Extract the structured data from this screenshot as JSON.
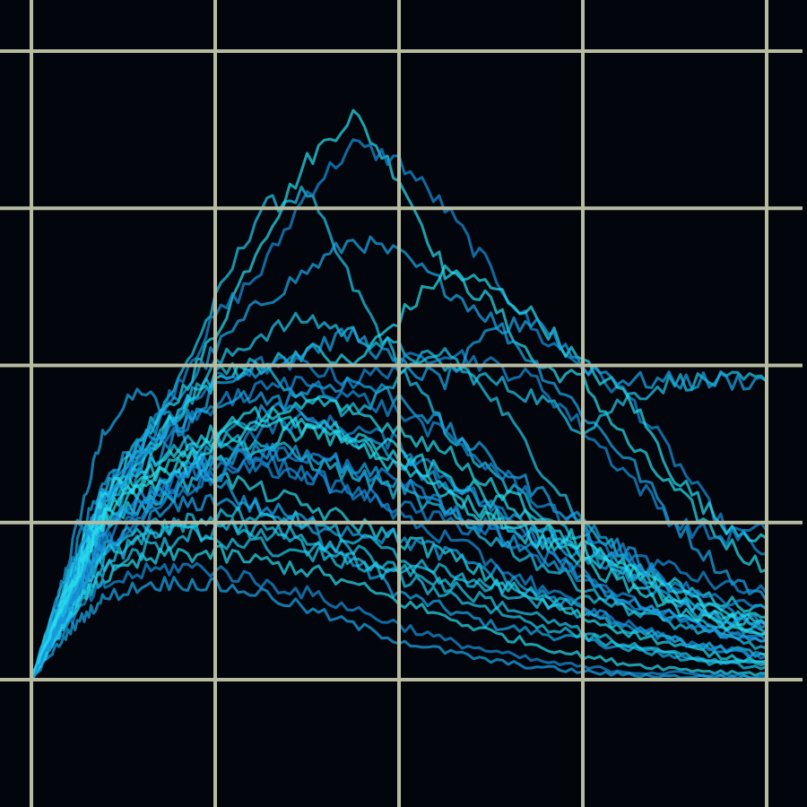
{
  "chart_data": {
    "type": "line",
    "title": "",
    "xlabel": "",
    "ylabel": "",
    "xlim": [
      0,
      4
    ],
    "ylim": [
      0,
      4
    ],
    "grid": true,
    "gridlines_x": [
      0,
      1,
      2,
      3,
      4
    ],
    "gridlines_y": [
      0,
      1,
      2,
      3,
      4
    ],
    "legend": "none",
    "background_color": "#03050d",
    "grid_color": "#b7bca0",
    "line_colors": [
      "#1aa8e6",
      "#20c8e8",
      "#27dcea",
      "#1690d8"
    ],
    "x": [
      0,
      0.1,
      0.2,
      0.3,
      0.4,
      0.6,
      0.8,
      1.0,
      1.25,
      1.5,
      1.75,
      2.0,
      2.25,
      2.5,
      2.75,
      3.0,
      3.25,
      3.5,
      3.75,
      4.0
    ],
    "series": [
      {
        "values": [
          0,
          0.35,
          0.75,
          1.2,
          1.6,
          1.85,
          1.6,
          1.25,
          1.1,
          0.95,
          0.75,
          0.55,
          0.45,
          0.35,
          0.3,
          0.25,
          0.2,
          0.15,
          0.12,
          0.1
        ]
      },
      {
        "values": [
          0,
          0.3,
          0.6,
          0.9,
          1.2,
          1.55,
          1.9,
          2.4,
          3.0,
          3.1,
          2.5,
          2.0,
          1.6,
          1.3,
          1.1,
          0.9,
          0.7,
          0.5,
          0.35,
          0.3
        ]
      },
      {
        "values": [
          0,
          0.3,
          0.6,
          0.9,
          1.2,
          1.5,
          1.8,
          2.2,
          2.8,
          3.3,
          3.6,
          3.2,
          2.6,
          2.4,
          2.0,
          1.9,
          1.5,
          1.2,
          0.9,
          0.7
        ]
      },
      {
        "values": [
          0,
          0.3,
          0.6,
          0.9,
          1.2,
          1.5,
          1.9,
          2.3,
          2.6,
          3.1,
          3.4,
          3.3,
          3.0,
          2.6,
          2.2,
          2.0,
          1.8,
          1.4,
          1.0,
          0.8
        ]
      },
      {
        "values": [
          0,
          0.3,
          0.6,
          0.9,
          1.2,
          1.5,
          1.8,
          2.1,
          2.4,
          2.6,
          2.8,
          2.7,
          2.5,
          2.3,
          2.0,
          1.7,
          1.4,
          1.0,
          0.7,
          0.5
        ]
      },
      {
        "values": [
          0,
          0.25,
          0.5,
          0.8,
          1.1,
          1.4,
          1.7,
          2.0,
          2.2,
          2.3,
          2.2,
          2.1,
          2.0,
          1.9,
          1.8,
          1.6,
          1.8,
          1.9,
          1.9,
          1.9
        ]
      },
      {
        "values": [
          0,
          0.25,
          0.5,
          0.8,
          1.1,
          1.4,
          1.7,
          1.9,
          2.0,
          2.1,
          2.0,
          2.3,
          2.6,
          2.5,
          2.3,
          2.0,
          1.8,
          1.3,
          1.0,
          0.9
        ]
      },
      {
        "values": [
          0,
          0.25,
          0.5,
          0.8,
          1.1,
          1.4,
          1.7,
          1.9,
          2.0,
          2.0,
          1.9,
          2.0,
          2.1,
          2.0,
          1.9,
          1.6,
          1.3,
          1.0,
          0.9,
          0.95
        ]
      },
      {
        "values": [
          0,
          0.2,
          0.45,
          0.7,
          1.0,
          1.3,
          1.6,
          1.85,
          2.0,
          2.1,
          2.2,
          2.0,
          1.9,
          2.2,
          2.3,
          2.0,
          1.9,
          1.9,
          1.9,
          1.9
        ]
      },
      {
        "values": [
          0,
          0.25,
          0.5,
          0.8,
          1.1,
          1.4,
          1.7,
          1.95,
          2.0,
          1.8,
          1.7,
          1.9,
          2.1,
          1.8,
          1.4,
          1.0,
          0.75,
          0.55,
          0.4,
          0.35
        ]
      },
      {
        "values": [
          0,
          0.3,
          0.6,
          0.85,
          1.05,
          1.1,
          1.2,
          1.4,
          1.5,
          1.6,
          1.5,
          1.4,
          1.2,
          1.0,
          0.9,
          0.8,
          0.7,
          0.6,
          0.5,
          0.45
        ]
      },
      {
        "values": [
          0,
          0.3,
          0.55,
          0.8,
          1.0,
          1.15,
          1.3,
          1.45,
          1.6,
          1.65,
          1.6,
          1.5,
          1.3,
          1.1,
          0.9,
          0.7,
          0.5,
          0.4,
          0.3,
          0.25
        ]
      },
      {
        "values": [
          0,
          0.2,
          0.4,
          0.6,
          0.8,
          1.05,
          1.3,
          1.5,
          1.7,
          1.85,
          1.9,
          1.8,
          1.6,
          1.4,
          1.2,
          1.0,
          0.8,
          0.6,
          0.45,
          0.35
        ]
      },
      {
        "values": [
          0,
          0.3,
          0.6,
          0.9,
          1.15,
          1.35,
          1.5,
          1.55,
          1.5,
          1.4,
          1.3,
          1.2,
          1.05,
          0.9,
          0.75,
          0.6,
          0.45,
          0.35,
          0.28,
          0.2
        ]
      },
      {
        "values": [
          0,
          0.35,
          0.65,
          0.95,
          1.2,
          1.3,
          1.35,
          1.3,
          1.2,
          1.1,
          1.0,
          0.9,
          0.8,
          0.65,
          0.5,
          0.4,
          0.3,
          0.22,
          0.15,
          0.12
        ]
      },
      {
        "values": [
          0,
          0.25,
          0.5,
          0.75,
          0.95,
          1.1,
          1.2,
          1.3,
          1.4,
          1.3,
          1.2,
          1.1,
          1.0,
          0.95,
          0.9,
          0.85,
          0.8,
          0.7,
          0.6,
          0.55
        ]
      },
      {
        "values": [
          0,
          0.2,
          0.4,
          0.6,
          0.8,
          1.0,
          1.1,
          1.15,
          1.1,
          1.0,
          0.95,
          0.9,
          0.8,
          0.7,
          0.55,
          0.45,
          0.35,
          0.25,
          0.18,
          0.15
        ]
      },
      {
        "values": [
          0,
          0.25,
          0.5,
          0.7,
          0.85,
          0.95,
          1.0,
          1.0,
          0.95,
          0.85,
          0.75,
          0.65,
          0.55,
          0.45,
          0.35,
          0.28,
          0.2,
          0.15,
          0.1,
          0.08
        ]
      },
      {
        "values": [
          0,
          0.2,
          0.4,
          0.55,
          0.65,
          0.75,
          0.8,
          0.8,
          0.75,
          0.7,
          0.6,
          0.5,
          0.4,
          0.3,
          0.22,
          0.15,
          0.1,
          0.07,
          0.05,
          0.04
        ]
      },
      {
        "values": [
          0,
          0.2,
          0.35,
          0.5,
          0.6,
          0.68,
          0.72,
          0.7,
          0.62,
          0.55,
          0.45,
          0.35,
          0.25,
          0.18,
          0.12,
          0.08,
          0.05,
          0.04,
          0.03,
          0.02
        ]
      },
      {
        "values": [
          0,
          0.15,
          0.3,
          0.42,
          0.52,
          0.6,
          0.62,
          0.6,
          0.55,
          0.45,
          0.35,
          0.25,
          0.18,
          0.12,
          0.08,
          0.05,
          0.03,
          0.02,
          0.02,
          0.01
        ]
      },
      {
        "values": [
          0,
          0.25,
          0.45,
          0.65,
          0.8,
          0.9,
          0.95,
          0.9,
          0.85,
          0.8,
          0.75,
          0.7,
          0.65,
          0.6,
          0.55,
          0.5,
          0.45,
          0.4,
          0.35,
          0.3
        ]
      },
      {
        "values": [
          0,
          0.3,
          0.55,
          0.8,
          1.0,
          1.2,
          1.35,
          1.5,
          1.6,
          1.65,
          1.55,
          1.45,
          1.3,
          1.15,
          1.0,
          0.85,
          0.7,
          0.55,
          0.45,
          0.4
        ]
      },
      {
        "values": [
          0,
          0.3,
          0.6,
          0.9,
          1.15,
          1.4,
          1.6,
          1.75,
          1.85,
          1.9,
          1.8,
          1.7,
          1.55,
          1.35,
          1.15,
          0.95,
          0.75,
          0.6,
          0.5,
          0.45
        ]
      },
      {
        "values": [
          0,
          0.25,
          0.5,
          0.75,
          0.95,
          1.15,
          1.3,
          1.4,
          1.45,
          1.45,
          1.35,
          1.25,
          1.1,
          0.95,
          0.8,
          0.65,
          0.5,
          0.4,
          0.3,
          0.25
        ]
      },
      {
        "values": [
          0,
          0.2,
          0.4,
          0.6,
          0.75,
          0.9,
          1.0,
          1.05,
          1.05,
          1.0,
          0.9,
          0.8,
          0.7,
          0.6,
          0.5,
          0.4,
          0.32,
          0.25,
          0.2,
          0.16
        ]
      },
      {
        "values": [
          0,
          0.3,
          0.55,
          0.8,
          1.05,
          1.25,
          1.4,
          1.55,
          1.7,
          1.75,
          1.7,
          1.6,
          1.45,
          1.25,
          1.05,
          0.85,
          0.65,
          0.5,
          0.4,
          0.35
        ]
      },
      {
        "values": [
          0,
          0.25,
          0.45,
          0.65,
          0.85,
          1.05,
          1.2,
          1.3,
          1.35,
          1.3,
          1.2,
          1.05,
          0.9,
          0.75,
          0.6,
          0.45,
          0.35,
          0.25,
          0.2,
          0.15
        ]
      },
      {
        "values": [
          0,
          0.35,
          0.7,
          1.0,
          1.3,
          1.5,
          1.65,
          1.75,
          1.8,
          1.7,
          1.55,
          1.4,
          1.25,
          1.1,
          0.95,
          0.8,
          0.65,
          0.5,
          0.4,
          0.35
        ]
      },
      {
        "values": [
          0,
          0.2,
          0.38,
          0.55,
          0.7,
          0.82,
          0.9,
          0.95,
          0.95,
          0.9,
          0.82,
          0.72,
          0.6,
          0.5,
          0.4,
          0.3,
          0.22,
          0.16,
          0.12,
          0.1
        ]
      },
      {
        "values": [
          0,
          0.28,
          0.55,
          0.82,
          1.05,
          1.25,
          1.45,
          1.6,
          1.65,
          1.6,
          1.5,
          1.35,
          1.2,
          1.05,
          0.9,
          0.75,
          0.6,
          0.45,
          0.35,
          0.3
        ]
      },
      {
        "values": [
          0,
          0.22,
          0.45,
          0.68,
          0.9,
          1.1,
          1.25,
          1.38,
          1.45,
          1.42,
          1.35,
          1.25,
          1.1,
          0.95,
          0.8,
          0.65,
          0.5,
          0.38,
          0.3,
          0.25
        ]
      }
    ]
  }
}
